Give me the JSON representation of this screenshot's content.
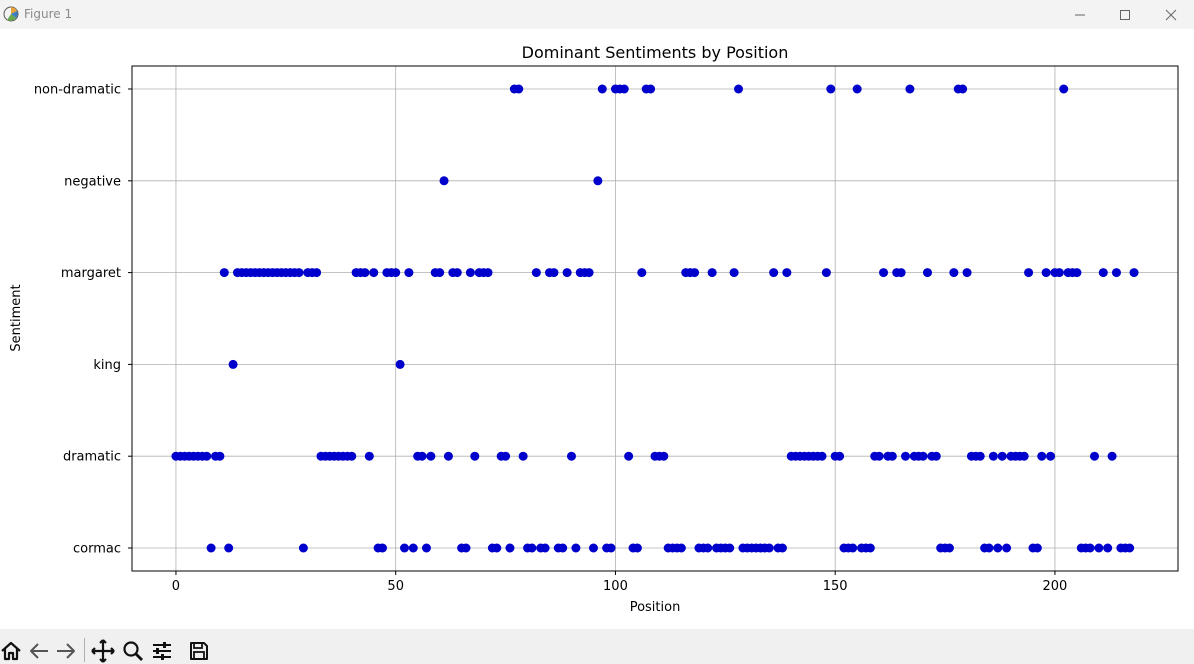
{
  "window": {
    "title": "Figure 1",
    "controls": [
      "minimize-icon",
      "maximize-icon",
      "close-icon"
    ]
  },
  "toolbar": {
    "buttons": [
      "home-icon",
      "back-icon",
      "forward-icon",
      "pan-icon",
      "zoom-icon",
      "configure-subplots-icon",
      "save-icon"
    ]
  },
  "chart_data": {
    "type": "scatter",
    "title": "Dominant Sentiments by Position",
    "xlabel": "Position",
    "ylabel": "Sentiment",
    "xlim": [
      -10,
      228
    ],
    "xticks": [
      0,
      50,
      100,
      150,
      200
    ],
    "categories": [
      "cormac",
      "dramatic",
      "king",
      "margaret",
      "negative",
      "non-dramatic"
    ],
    "grid": true,
    "marker_color": "#0000cc",
    "points": {
      "non-dramatic": [
        77,
        78,
        97,
        100,
        101,
        102,
        107,
        108,
        128,
        149,
        155,
        167,
        178,
        179,
        202
      ],
      "negative": [
        61,
        96
      ],
      "margaret": [
        11,
        14,
        15,
        16,
        17,
        18,
        19,
        20,
        21,
        22,
        23,
        24,
        25,
        26,
        27,
        28,
        30,
        31,
        32,
        41,
        42,
        43,
        45,
        48,
        49,
        50,
        53,
        59,
        60,
        63,
        64,
        67,
        69,
        70,
        71,
        82,
        85,
        86,
        89,
        92,
        93,
        94,
        106,
        116,
        117,
        118,
        122,
        127,
        136,
        139,
        148,
        161,
        164,
        165,
        171,
        177,
        180,
        194,
        198,
        200,
        201,
        203,
        204,
        205,
        211,
        214,
        218
      ],
      "king": [
        13,
        51
      ],
      "dramatic": [
        0,
        1,
        2,
        3,
        4,
        5,
        6,
        7,
        9,
        10,
        33,
        34,
        35,
        36,
        37,
        38,
        39,
        40,
        44,
        55,
        56,
        58,
        62,
        68,
        74,
        75,
        79,
        90,
        103,
        109,
        110,
        111,
        140,
        141,
        142,
        143,
        144,
        145,
        146,
        147,
        150,
        151,
        159,
        160,
        162,
        163,
        166,
        168,
        169,
        170,
        172,
        173,
        181,
        182,
        183,
        186,
        188,
        190,
        191,
        192,
        193,
        197,
        199,
        209,
        213
      ],
      "cormac": [
        8,
        12,
        29,
        46,
        47,
        52,
        54,
        57,
        65,
        66,
        72,
        73,
        76,
        80,
        81,
        83,
        84,
        87,
        88,
        91,
        95,
        98,
        99,
        104,
        105,
        112,
        113,
        114,
        115,
        119,
        120,
        121,
        123,
        124,
        125,
        126,
        129,
        130,
        131,
        132,
        133,
        134,
        135,
        137,
        138,
        152,
        153,
        154,
        156,
        157,
        158,
        174,
        175,
        176,
        184,
        185,
        187,
        189,
        195,
        196,
        206,
        207,
        208,
        210,
        212,
        215,
        216,
        217
      ]
    }
  }
}
